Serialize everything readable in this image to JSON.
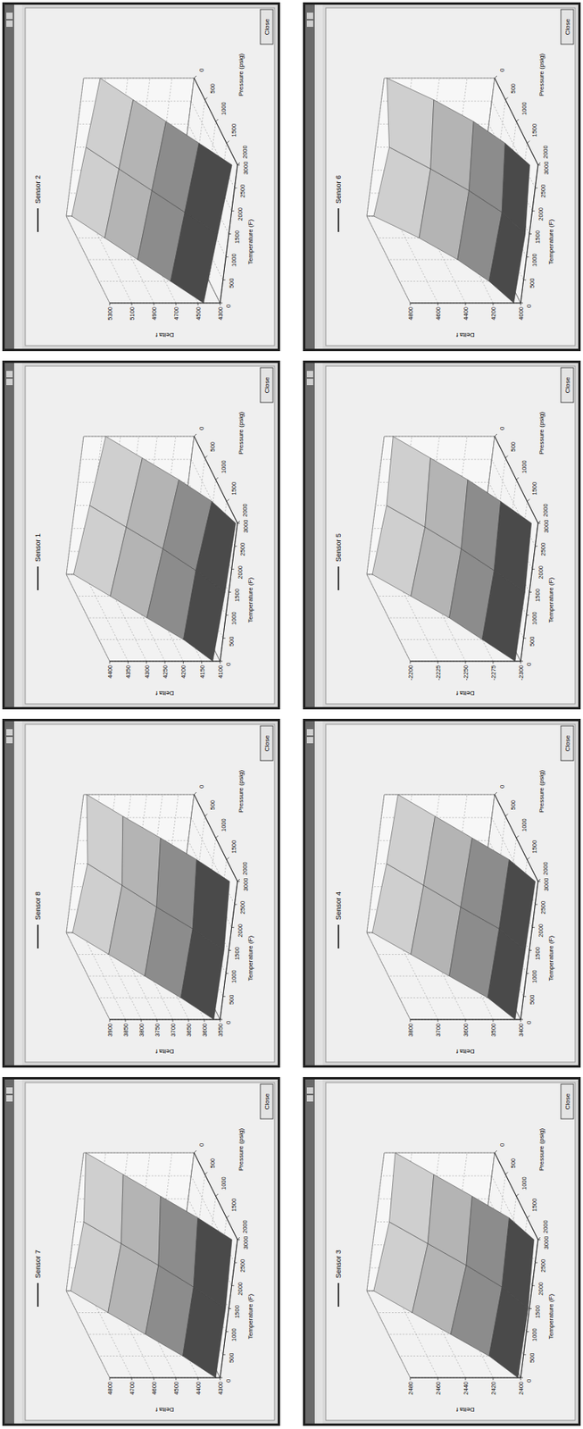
{
  "ui": {
    "close": "Close"
  },
  "chart_data": [
    {
      "type": "surface",
      "title": "Sensor 2",
      "xlabel": "Pressure (psig)",
      "ylabel": "Temperature (F)",
      "zlabel": "Delta f",
      "x": [
        0,
        500,
        1000,
        1500,
        2000
      ],
      "y": [
        0,
        1500,
        3000
      ],
      "z": [
        [
          5250,
          5050,
          4850,
          4650,
          4450
        ],
        [
          5200,
          5000,
          4800,
          4600,
          4400
        ],
        [
          5150,
          4950,
          4750,
          4550,
          4350
        ]
      ],
      "xlim": [
        0,
        2000
      ],
      "xticks": [
        0,
        500,
        1000,
        1500,
        2000
      ],
      "ylim": [
        0,
        3000
      ],
      "yticks": [
        0,
        500,
        1000,
        1500,
        2000,
        2500,
        3000
      ],
      "zlim": [
        4300,
        5300
      ],
      "zticks": [
        4300,
        4500,
        4700,
        4900,
        5100,
        5300
      ],
      "grid": true
    },
    {
      "type": "surface",
      "title": "Sensor 6",
      "xlabel": "Pressure (psig)",
      "ylabel": "Temperature (F)",
      "zlabel": "Delta f",
      "x": [
        0,
        500,
        1000,
        1500,
        2000
      ],
      "y": [
        0,
        1500,
        3000
      ],
      "z": [
        [
          4750,
          4500,
          4300,
          4150,
          4050
        ],
        [
          4700,
          4480,
          4280,
          4120,
          4030
        ],
        [
          4780,
          4520,
          4310,
          4160,
          4060
        ]
      ],
      "xlim": [
        0,
        2000
      ],
      "xticks": [
        0,
        500,
        1000,
        1500,
        2000
      ],
      "ylim": [
        0,
        3000
      ],
      "yticks": [
        0,
        500,
        1000,
        1500,
        2000,
        2500,
        3000
      ],
      "zlim": [
        4000,
        4800
      ],
      "zticks": [
        4000,
        4200,
        4400,
        4600,
        4800
      ],
      "grid": true
    },
    {
      "type": "surface",
      "title": "Sensor 1",
      "xlabel": "Pressure (psig)",
      "ylabel": "Temperature (F)",
      "zlabel": "Delta f",
      "x": [
        0,
        500,
        1000,
        1500,
        2000
      ],
      "y": [
        0,
        1500,
        3000
      ],
      "z": [
        [
          4380,
          4310,
          4240,
          4170,
          4120
        ],
        [
          4360,
          4290,
          4220,
          4160,
          4110
        ],
        [
          4340,
          4270,
          4200,
          4140,
          4105
        ]
      ],
      "xlim": [
        0,
        2000
      ],
      "xticks": [
        0,
        500,
        1000,
        1500,
        2000
      ],
      "ylim": [
        0,
        3000
      ],
      "yticks": [
        0,
        500,
        1000,
        1500,
        2000,
        2500,
        3000
      ],
      "zlim": [
        4100,
        4400
      ],
      "zticks": [
        4100,
        4150,
        4200,
        4250,
        4300,
        4350,
        4400
      ],
      "grid": true
    },
    {
      "type": "surface",
      "title": "Sensor 5",
      "xlabel": "Pressure (psig)",
      "ylabel": "Temperature (F)",
      "zlabel": "Delta f",
      "x": [
        0,
        500,
        1000,
        1500,
        2000
      ],
      "y": [
        0,
        1500,
        3000
      ],
      "z": [
        [
          -2205,
          -2230,
          -2255,
          -2275,
          -2295
        ],
        [
          -2210,
          -2235,
          -2258,
          -2278,
          -2296
        ],
        [
          -2208,
          -2232,
          -2256,
          -2276,
          -2294
        ]
      ],
      "xlim": [
        0,
        2000
      ],
      "xticks": [
        0,
        500,
        1000,
        1500,
        2000
      ],
      "ylim": [
        0,
        3000
      ],
      "yticks": [
        0,
        500,
        1000,
        1500,
        2000,
        2500,
        3000
      ],
      "zlim": [
        -2300,
        -2200
      ],
      "zticks": [
        -2300,
        -2275,
        -2250,
        -2225,
        -2200
      ],
      "grid": true
    },
    {
      "type": "surface",
      "title": "Sensor 8",
      "xlabel": "Pressure (psig)",
      "ylabel": "Temperature (F)",
      "zlabel": "Delta f",
      "x": [
        0,
        500,
        1000,
        1500,
        2000
      ],
      "y": [
        0,
        1500,
        3000
      ],
      "z": [
        [
          3880,
          3800,
          3720,
          3640,
          3570
        ],
        [
          3860,
          3785,
          3710,
          3630,
          3565
        ],
        [
          3890,
          3810,
          3725,
          3645,
          3575
        ]
      ],
      "xlim": [
        0,
        2000
      ],
      "xticks": [
        0,
        500,
        1000,
        1500,
        2000
      ],
      "ylim": [
        0,
        3000
      ],
      "yticks": [
        0,
        500,
        1000,
        1500,
        2000,
        2500,
        3000
      ],
      "zlim": [
        3550,
        3900
      ],
      "zticks": [
        3550,
        3600,
        3650,
        3700,
        3750,
        3800,
        3850,
        3900
      ],
      "grid": true
    },
    {
      "type": "surface",
      "title": "Sensor 4",
      "xlabel": "Pressure (psig)",
      "ylabel": "Temperature (F)",
      "zlabel": "Delta f",
      "x": [
        0,
        500,
        1000,
        1500,
        2000
      ],
      "y": [
        0,
        1500,
        3000
      ],
      "z": [
        [
          3780,
          3680,
          3580,
          3480,
          3420
        ],
        [
          3760,
          3665,
          3570,
          3470,
          3415
        ],
        [
          3750,
          3655,
          3560,
          3465,
          3410
        ]
      ],
      "xlim": [
        0,
        2000
      ],
      "xticks": [
        0,
        500,
        1000,
        1500,
        2000
      ],
      "ylim": [
        0,
        3000
      ],
      "yticks": [
        0,
        500,
        1000,
        1500,
        2000,
        2500,
        3000
      ],
      "zlim": [
        3400,
        3800
      ],
      "zticks": [
        3400,
        3500,
        3600,
        3700,
        3800
      ],
      "grid": true
    },
    {
      "type": "surface",
      "title": "Sensor 7",
      "xlabel": "Pressure (psig)",
      "ylabel": "Temperature (F)",
      "zlabel": "Delta f",
      "x": [
        0,
        500,
        1000,
        1500,
        2000
      ],
      "y": [
        0,
        1500,
        3000
      ],
      "z": [
        [
          4780,
          4660,
          4540,
          4420,
          4320
        ],
        [
          4760,
          4640,
          4520,
          4410,
          4315
        ],
        [
          4790,
          4670,
          4550,
          4430,
          4325
        ]
      ],
      "xlim": [
        0,
        2000
      ],
      "xticks": [
        0,
        500,
        1000,
        1500,
        2000
      ],
      "ylim": [
        0,
        3000
      ],
      "yticks": [
        0,
        500,
        1000,
        1500,
        2000,
        2500,
        3000
      ],
      "zlim": [
        4300,
        4800
      ],
      "zticks": [
        4300,
        4400,
        4500,
        4600,
        4700,
        4800
      ],
      "grid": true
    },
    {
      "type": "surface",
      "title": "Sensor 3",
      "xlabel": "Pressure (psig)",
      "ylabel": "Temperature (F)",
      "zlabel": "Delta f",
      "x": [
        0,
        500,
        1000,
        1500,
        2000
      ],
      "y": [
        0,
        1500,
        3000
      ],
      "z": [
        [
          2475,
          2455,
          2435,
          2415,
          2402
        ],
        [
          2470,
          2450,
          2430,
          2412,
          2401
        ],
        [
          2472,
          2452,
          2432,
          2413,
          2403
        ]
      ],
      "xlim": [
        0,
        2000
      ],
      "xticks": [
        0,
        500,
        1000,
        1500,
        2000
      ],
      "ylim": [
        0,
        3000
      ],
      "yticks": [
        0,
        500,
        1000,
        1500,
        2000,
        2500,
        3000
      ],
      "zlim": [
        2400,
        2480
      ],
      "zticks": [
        2400,
        2420,
        2440,
        2460,
        2480
      ],
      "grid": true
    }
  ]
}
